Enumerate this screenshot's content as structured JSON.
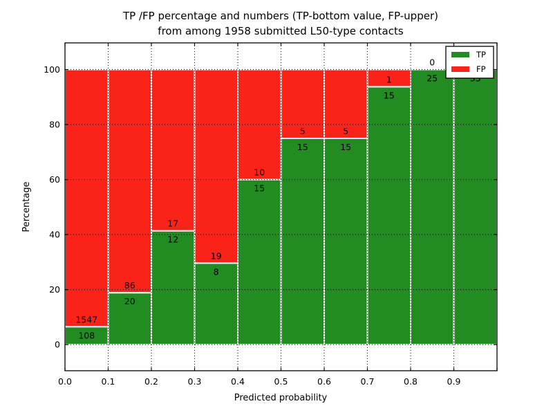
{
  "title": {
    "line1": "TP /FP percentage and numbers (TP-bottom value, FP-upper)",
    "line2": "from among 1958 submitted L50-type contacts"
  },
  "chart_data": {
    "type": "bar",
    "stacked": true,
    "normalized": "each bar scaled to 100%",
    "title": "TP /FP percentage and numbers (TP-bottom value, FP-upper)\nfrom among 1958 submitted L50-type contacts",
    "xlabel": "Predicted probability",
    "ylabel": "Percentage",
    "total_contacts": 1958,
    "bin_width": 0.1,
    "bin_starts": [
      0.0,
      0.1,
      0.2,
      0.3,
      0.4,
      0.5,
      0.6,
      0.7,
      0.8,
      0.9
    ],
    "x_tick_labels": [
      "0.0",
      "0.1",
      "0.2",
      "0.3",
      "0.4",
      "0.5",
      "0.6",
      "0.7",
      "0.8",
      "0.9"
    ],
    "y_tick_values": [
      0,
      20,
      40,
      60,
      80,
      100
    ],
    "y_tick_labels": [
      "0",
      "20",
      "40",
      "60",
      "80",
      "100"
    ],
    "xlim": [
      0.0,
      1.0
    ],
    "ylim": [
      -9.5,
      109.7
    ],
    "grid": "dotted black, on top of bars",
    "bar_edge_color": "#ffffff",
    "series": [
      {
        "name": "TP",
        "color": "#228b22",
        "counts": [
          108,
          20,
          12,
          8,
          15,
          15,
          15,
          15,
          25,
          35
        ]
      },
      {
        "name": "FP",
        "color": "#fa231a",
        "counts": [
          1547,
          86,
          17,
          19,
          10,
          5,
          5,
          1,
          0,
          0
        ]
      }
    ],
    "tp_percent": [
      6.5,
      18.9,
      41.4,
      29.6,
      60.0,
      75.0,
      75.0,
      93.8,
      100.0,
      100.0
    ],
    "legend": {
      "position": "upper right",
      "entries": [
        {
          "label": "TP",
          "color": "#228b22"
        },
        {
          "label": "FP",
          "color": "#fa231a"
        }
      ]
    }
  }
}
